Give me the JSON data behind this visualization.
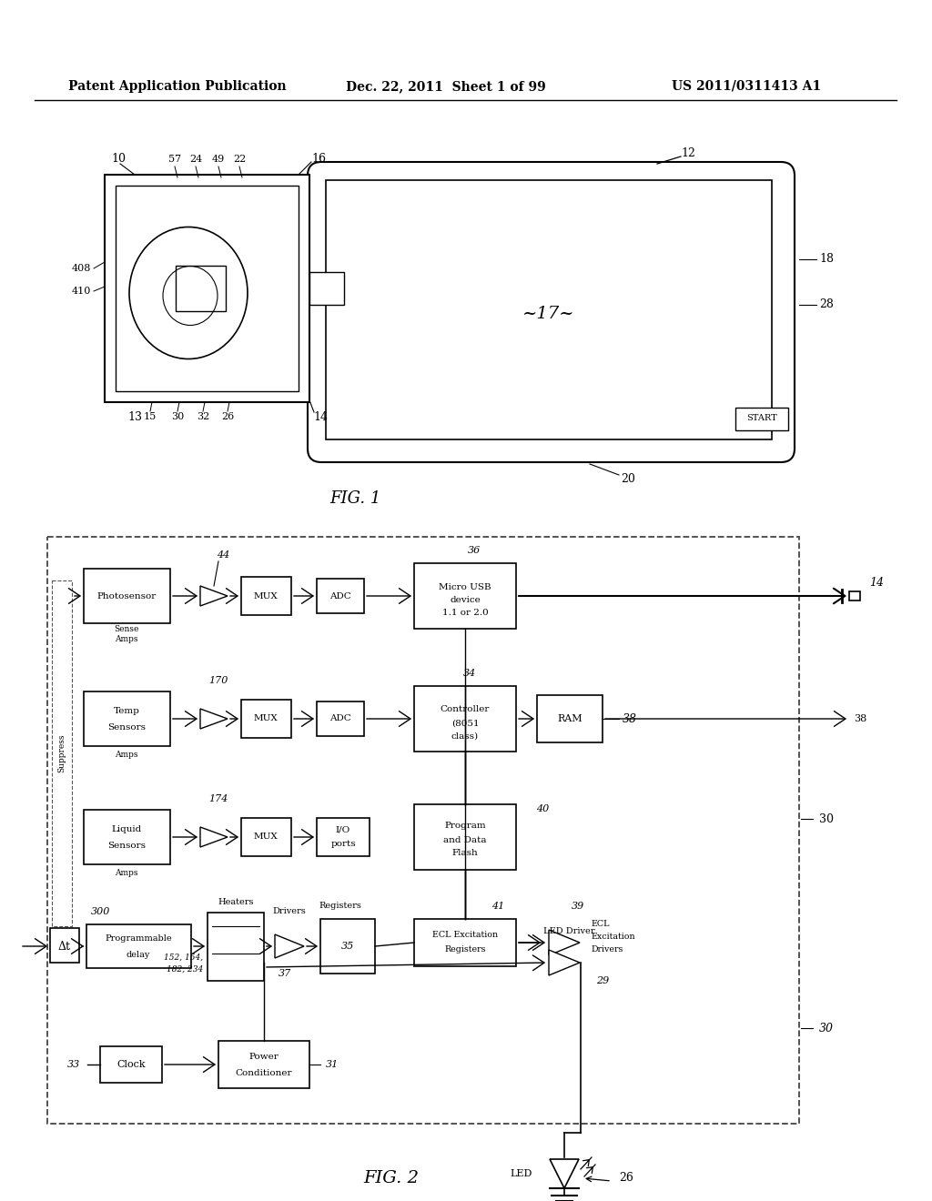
{
  "title_left": "Patent Application Publication",
  "title_center": "Dec. 22, 2011  Sheet 1 of 99",
  "title_right": "US 2011/0311413 A1",
  "fig1_label": "FIG. 1",
  "fig2_label": "FIG. 2",
  "background": "#ffffff"
}
